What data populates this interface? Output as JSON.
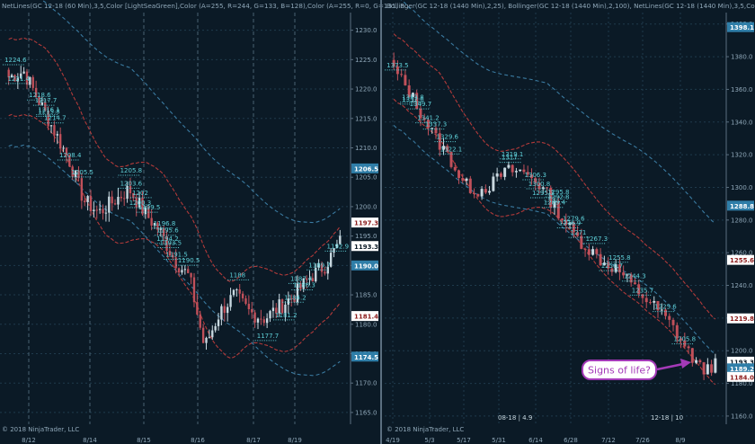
{
  "colors": {
    "background": "#0b1a26",
    "grid": "#1f3a4c",
    "axis_text": "#8fa7b8",
    "up_candle": "#c8d8e0",
    "down_candle": "#c0505a",
    "bb_upper_lower": "#b23a3a",
    "bb_outer": "#3a7aa0",
    "annotation": "#5fd0d8",
    "callout_border": "#a43ab8",
    "callout_bg": "#ffffff",
    "callout_text": "#a43ab8",
    "price_box_red": "#ffffff",
    "price_box_blue": "#2f7ea8"
  },
  "chart_data": [
    {
      "type": "candlestick",
      "title": "NetLines(GC 12-18 (60 Min),3,5,Color [LightSeaGreen],Color (A=255, R=244, G=133, B=128),Color (A=255, R=0, G=131, B...",
      "ylim": [
        1163,
        1233
      ],
      "yticks": [
        1165,
        1170,
        1175,
        1180,
        1185,
        1190,
        1195,
        1200,
        1205,
        1210,
        1215,
        1220,
        1225,
        1230
      ],
      "ytick_labels": [
        "1165.0",
        "1170.0",
        "1175.0",
        "1180.0",
        "1185.0",
        "1190.0",
        "1195.0",
        "1200.0",
        "1205.0",
        "1210.0",
        "1215.0",
        "1220.0",
        "1225.0",
        "1230.0"
      ],
      "xticks": [
        "8/12",
        "8/14",
        "8/15",
        "8/16",
        "8/17",
        "8/19"
      ],
      "price_boxes": [
        {
          "value": "1206.5",
          "kind": "blue"
        },
        {
          "value": "1197.3",
          "kind": "red"
        },
        {
          "value": "1193.3",
          "kind": "white"
        },
        {
          "value": "1190.0",
          "kind": "blue"
        },
        {
          "value": "1181.4",
          "kind": "red"
        },
        {
          "value": "1174.5",
          "kind": "blue"
        }
      ],
      "annotations": [
        "1224.6",
        "1221.4",
        "1218.6",
        "1215.8",
        "1217.7",
        "1216.1",
        "1214.7",
        "1208.4",
        "1205.5",
        "1203.6",
        "1205.8",
        "1200.3",
        "1202",
        "1199.5",
        "1196.8",
        "1195.6",
        "1194.2",
        "1193.5",
        "1191.5",
        "1190.5",
        "1188",
        "1189.7",
        "1187.4",
        "1186.3",
        "1184.2",
        "1181.2",
        "1177.7",
        "1192.9"
      ],
      "footer": "© 2018 NinjaTrader, LLC"
    },
    {
      "type": "candlestick",
      "title": "Bollinger(GC 12-18 (1440 Min),2,25), Bollinger(GC 12-18 (1440 Min),2,100), NetLines(GC 12-18 (1440 Min),3,5,Color [",
      "ylim": [
        1155,
        1407
      ],
      "yticks": [
        1160,
        1180,
        1200,
        1220,
        1240,
        1260,
        1280,
        1300,
        1320,
        1340,
        1360,
        1380,
        1400
      ],
      "ytick_labels": [
        "1160.0",
        "1180.0",
        "1200.0",
        "1220.0",
        "1240.0",
        "1260.0",
        "1280.0",
        "1300.0",
        "1320.0",
        "1340.0",
        "1360.0",
        "1380.0",
        "1400.0"
      ],
      "xticks": [
        "4/19",
        "5/3",
        "5/17",
        "5/31",
        "6/14",
        "6/28",
        "7/12",
        "7/26",
        "8/9"
      ],
      "price_boxes": [
        {
          "value": "1398.1",
          "kind": "blue"
        },
        {
          "value": "1288.8",
          "kind": "blue"
        },
        {
          "value": "1255.6",
          "kind": "red"
        },
        {
          "value": "1219.8",
          "kind": "red"
        },
        {
          "value": "1193.3",
          "kind": "white"
        },
        {
          "value": "1189.2",
          "kind": "blue"
        },
        {
          "value": "1184.0",
          "kind": "red"
        }
      ],
      "annotations": [
        "1373.5",
        "1353.8",
        "1352.6",
        "1349.7",
        "1341.2",
        "1337.3",
        "1329.6",
        "1322.1",
        "1319.1",
        "1317",
        "1306.3",
        "1300.8",
        "1295.3",
        "1295.8",
        "1292.8",
        "1289.4",
        "1279.6",
        "1276.9",
        "1271",
        "1267.3",
        "1255.8",
        "1250.7",
        "1244.3",
        "1235.7",
        "1225.6",
        "1205.8"
      ],
      "contract_labels": [
        "08-18 | 4.9",
        "12-18 | 10"
      ],
      "callout": "Signs of life?",
      "footer": "© 2018 NinjaTrader, LLC"
    }
  ]
}
